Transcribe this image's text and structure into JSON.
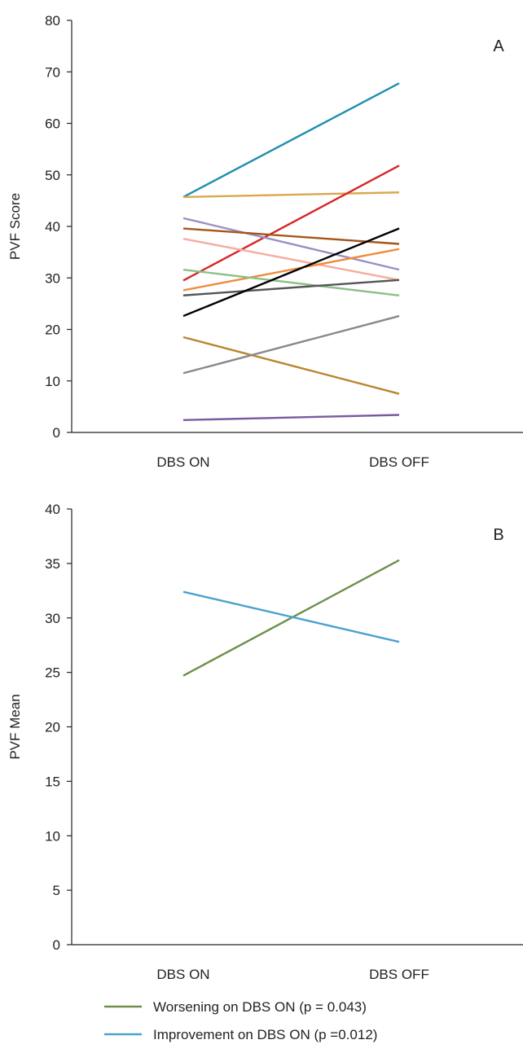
{
  "chart_data": [
    {
      "type": "line",
      "panel_label": "A",
      "ylabel": "PVF Score",
      "xlabel": "",
      "categories": [
        "DBS ON",
        "DBS OFF"
      ],
      "ylim": [
        0,
        80
      ],
      "yticks": [
        0,
        10,
        20,
        30,
        40,
        50,
        60,
        70,
        80
      ],
      "grid": false,
      "series": [
        {
          "values": [
            45.7,
            67.8
          ],
          "color": "#1f8fb0"
        },
        {
          "values": [
            45.7,
            46.6
          ],
          "color": "#d9a84e"
        },
        {
          "values": [
            29.5,
            51.8
          ],
          "color": "#d62728"
        },
        {
          "values": [
            41.6,
            31.6
          ],
          "color": "#9b8ec4"
        },
        {
          "values": [
            39.6,
            36.6
          ],
          "color": "#a4561a"
        },
        {
          "values": [
            37.6,
            29.6
          ],
          "color": "#f4ada0"
        },
        {
          "values": [
            27.6,
            35.6
          ],
          "color": "#ef8c3c"
        },
        {
          "values": [
            31.6,
            26.6
          ],
          "color": "#8ebf88"
        },
        {
          "values": [
            26.6,
            29.6
          ],
          "color": "#555555"
        },
        {
          "values": [
            22.6,
            39.6
          ],
          "color": "#000000"
        },
        {
          "values": [
            18.5,
            7.5
          ],
          "color": "#b8862e"
        },
        {
          "values": [
            11.5,
            22.6
          ],
          "color": "#888888"
        },
        {
          "values": [
            2.4,
            3.4
          ],
          "color": "#7a5aa0"
        }
      ]
    },
    {
      "type": "line",
      "panel_label": "B",
      "ylabel": "PVF Mean",
      "xlabel": "",
      "categories": [
        "DBS ON",
        "DBS OFF"
      ],
      "ylim": [
        0,
        40
      ],
      "yticks": [
        0,
        5,
        10,
        15,
        20,
        25,
        30,
        35,
        40
      ],
      "grid": false,
      "series": [
        {
          "name": "Worsening on DBS ON (p = 0.043)",
          "values": [
            24.7,
            35.3
          ],
          "color": "#6d8f4a"
        },
        {
          "name": "Improvement on DBS ON (p =0.012)",
          "values": [
            32.4,
            27.8
          ],
          "color": "#4aa3d0"
        }
      ]
    }
  ],
  "legend": [
    {
      "label": "Worsening on DBS ON (p = 0.043)",
      "color": "#6d8f4a"
    },
    {
      "label": "Improvement on DBS ON (p =0.012)",
      "color": "#4aa3d0"
    }
  ]
}
